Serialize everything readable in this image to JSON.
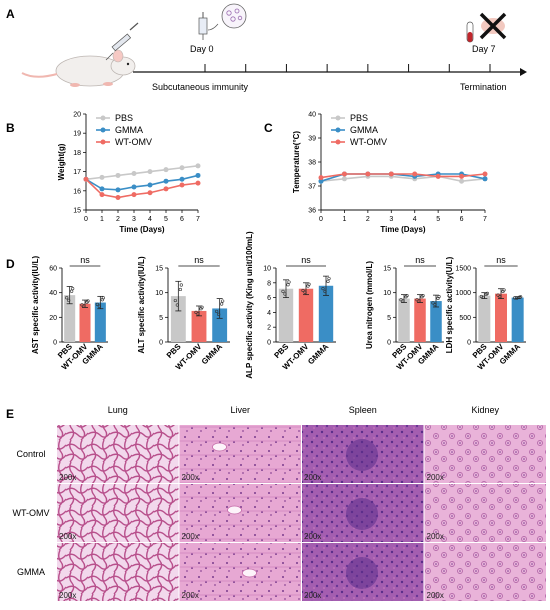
{
  "panels": {
    "A": "A",
    "B": "B",
    "C": "C",
    "D": "D",
    "E": "E"
  },
  "timeline": {
    "day0": "Day 0",
    "day7": "Day 7",
    "left_label": "Subcutaneous immunity",
    "right_label": "Termination"
  },
  "colors": {
    "PBS": "#c8c8c8",
    "GMMA": "#3a8ec6",
    "WT-OMV": "#ef6b63"
  },
  "chart_data": [
    {
      "type": "line",
      "ylabel": "Weight(g)",
      "xlabel": "Time (Days)",
      "ylim": [
        15,
        20
      ],
      "yticks": [
        "15",
        "16",
        "17",
        "18",
        "19",
        "20"
      ],
      "x": [
        0,
        1,
        2,
        3,
        4,
        5,
        6,
        7
      ],
      "series": [
        {
          "name": "PBS",
          "values": [
            16.6,
            16.7,
            16.8,
            16.9,
            17.0,
            17.1,
            17.2,
            17.3
          ]
        },
        {
          "name": "GMMA",
          "values": [
            16.6,
            16.1,
            16.05,
            16.2,
            16.3,
            16.5,
            16.6,
            16.8
          ]
        },
        {
          "name": "WT-OMV",
          "values": [
            16.6,
            15.8,
            15.65,
            15.8,
            15.9,
            16.1,
            16.3,
            16.4
          ]
        }
      ]
    },
    {
      "type": "line",
      "ylabel": "Temperature(°C)",
      "xlabel": "Time (Days)",
      "ylim": [
        36,
        40
      ],
      "yticks": [
        "36",
        "37",
        "38",
        "39",
        "40"
      ],
      "x": [
        0,
        1,
        2,
        3,
        4,
        5,
        6,
        7
      ],
      "series": [
        {
          "name": "PBS",
          "values": [
            37.2,
            37.3,
            37.4,
            37.4,
            37.3,
            37.4,
            37.2,
            37.3
          ]
        },
        {
          "name": "GMMA",
          "values": [
            37.2,
            37.5,
            37.5,
            37.5,
            37.4,
            37.5,
            37.5,
            37.3
          ]
        },
        {
          "name": "WT-OMV",
          "values": [
            37.35,
            37.5,
            37.5,
            37.5,
            37.5,
            37.4,
            37.4,
            37.5
          ]
        }
      ]
    },
    {
      "type": "bar",
      "ylabel": "AST specific activity(IU/L)",
      "categories": [
        "PBS",
        "WT-OMV",
        "GMMA"
      ],
      "values": [
        38,
        31,
        32
      ],
      "errors": [
        7,
        3,
        5
      ],
      "ylim": [
        0,
        60
      ],
      "yticks": [
        "0",
        "20",
        "40",
        "60"
      ],
      "sig": "ns"
    },
    {
      "type": "bar",
      "ylabel": "ALT specific activity(IU/L)",
      "categories": [
        "PBS",
        "WT-OMV",
        "GMMA"
      ],
      "values": [
        9.3,
        6.3,
        6.8
      ],
      "errors": [
        3,
        1,
        2
      ],
      "ylim": [
        0,
        15
      ],
      "yticks": [
        "0",
        "5",
        "10",
        "15"
      ],
      "sig": "ns"
    },
    {
      "type": "bar",
      "ylabel": "ALP specific activity (King unit/100mL)",
      "categories": [
        "PBS",
        "WT-OMV",
        "GMMA"
      ],
      "values": [
        7.2,
        7.2,
        7.6
      ],
      "errors": [
        1.2,
        0.8,
        1.3
      ],
      "ylim": [
        0,
        10
      ],
      "yticks": [
        "0",
        "2",
        "4",
        "6",
        "8",
        "10"
      ],
      "sig": "ns"
    },
    {
      "type": "bar",
      "ylabel": "Urea nitrogen (mmol/L)",
      "categories": [
        "PBS",
        "WT-OMV",
        "GMMA"
      ],
      "values": [
        8.8,
        8.8,
        8.3
      ],
      "errors": [
        0.8,
        0.8,
        1.2
      ],
      "ylim": [
        0,
        15
      ],
      "yticks": [
        "0",
        "5",
        "10",
        "15"
      ],
      "sig": "ns"
    },
    {
      "type": "bar",
      "ylabel": "LDH specific activity(U/L)",
      "categories": [
        "PBS",
        "WT-OMV",
        "GMMA"
      ],
      "values": [
        940,
        980,
        900
      ],
      "errors": [
        60,
        100,
        20
      ],
      "ylim": [
        0,
        1500
      ],
      "yticks": [
        "0",
        "500",
        "1000",
        "1500"
      ],
      "sig": "ns"
    }
  ],
  "histology": {
    "columns": [
      "Lung",
      "Liver",
      "Spleen",
      "Kidney"
    ],
    "rows": [
      "Control",
      "WT-OMV",
      "GMMA"
    ],
    "magnification": "200x"
  }
}
